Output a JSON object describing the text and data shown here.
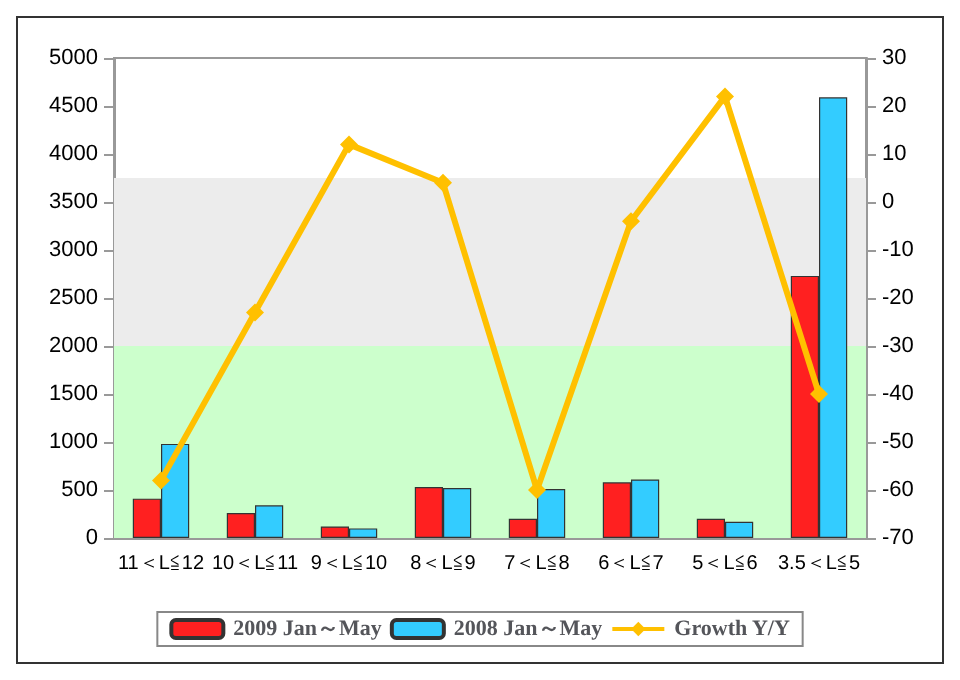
{
  "chart_data": {
    "type": "bar",
    "categories": [
      "11＜L≦12",
      "10＜L≦11",
      "9＜L≦10",
      "8＜L≦9",
      "7＜L≦8",
      "6＜L≦7",
      "5＜L≦6",
      "3.5＜L≦5"
    ],
    "series": [
      {
        "name": "2009 Jan～May",
        "color": "#ff2020",
        "values": [
          410,
          260,
          120,
          530,
          200,
          580,
          200,
          2730
        ]
      },
      {
        "name": "2008 Jan～May",
        "color": "#33ccff",
        "values": [
          980,
          340,
          100,
          520,
          510,
          610,
          170,
          4590
        ]
      },
      {
        "name": "Growth Y/Y",
        "type": "line",
        "axis": "y2",
        "color": "#ffc000",
        "values": [
          -58,
          -23,
          12,
          4,
          -60,
          -4,
          22,
          -40
        ]
      }
    ],
    "ylim": [
      0,
      5000
    ],
    "yticks": [
      0,
      500,
      1000,
      1500,
      2000,
      2500,
      3000,
      3500,
      4000,
      4500,
      5000
    ],
    "y2lim": [
      -70,
      30
    ],
    "y2ticks": [
      -70,
      -60,
      -50,
      -40,
      -30,
      -20,
      -10,
      0,
      10,
      20,
      30
    ],
    "bands": [
      {
        "axis": "y",
        "from": 0,
        "to": 2000,
        "color": "#ccffcc"
      },
      {
        "axis": "y",
        "from": 2000,
        "to": 3750,
        "color": "#ececec"
      }
    ],
    "grid": false,
    "legend": "bottom",
    "marker": "diamond",
    "line_style": "solid"
  }
}
